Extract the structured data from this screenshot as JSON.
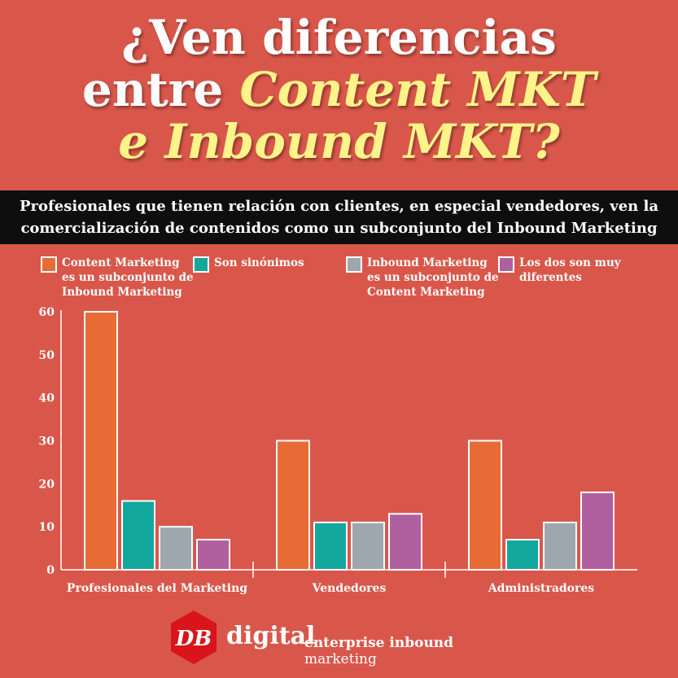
{
  "title": {
    "line1": "¿Ven diferencias",
    "line2_plain": "entre ",
    "line2_highlight": "Content MKT",
    "line3_highlight": "e Inbound MKT?"
  },
  "banner": {
    "line1": "Profesionales que tienen relación con clientes, en especial vendedores, ven la",
    "line2": "comercialización de contenidos como un subconjunto del Inbound Marketing"
  },
  "legend": [
    {
      "label_lines": [
        "Content Marketing",
        "es un subconjunto de",
        "Inbound Marketing"
      ],
      "color": "#e86b35"
    },
    {
      "label_lines": [
        "Son sinónimos"
      ],
      "color": "#13a89e"
    },
    {
      "label_lines": [
        "Inbound Marketing",
        "es un subconjunto de",
        "Content Marketing"
      ],
      "color": "#9ea7ad"
    },
    {
      "label_lines": [
        "Los dos son muy",
        "diferentes"
      ],
      "color": "#b0609f"
    }
  ],
  "chart_data": {
    "type": "bar",
    "categories": [
      "Profesionales del Marketing",
      "Vendedores",
      "Administradores"
    ],
    "series": [
      {
        "name": "Content Marketing es un subconjunto de Inbound Marketing",
        "color": "#e86b35",
        "values": [
          60,
          30,
          30
        ]
      },
      {
        "name": "Son sinónimos",
        "color": "#13a89e",
        "values": [
          16,
          11,
          7
        ]
      },
      {
        "name": "Inbound Marketing es un subconjunto de Content Marketing",
        "color": "#9ea7ad",
        "values": [
          10,
          11,
          11
        ]
      },
      {
        "name": "Los dos son muy diferentes",
        "color": "#b0609f",
        "values": [
          7,
          13,
          18
        ]
      }
    ],
    "ylim": [
      0,
      60
    ],
    "yticks": [
      0,
      10,
      20,
      30,
      40,
      50,
      60
    ],
    "grid": false,
    "legend_position": "top"
  },
  "footer": {
    "logo_letters": "DB",
    "logo_word": "digital",
    "tagline_bold": "enterprise inbound",
    "tagline_rest": " marketing"
  }
}
